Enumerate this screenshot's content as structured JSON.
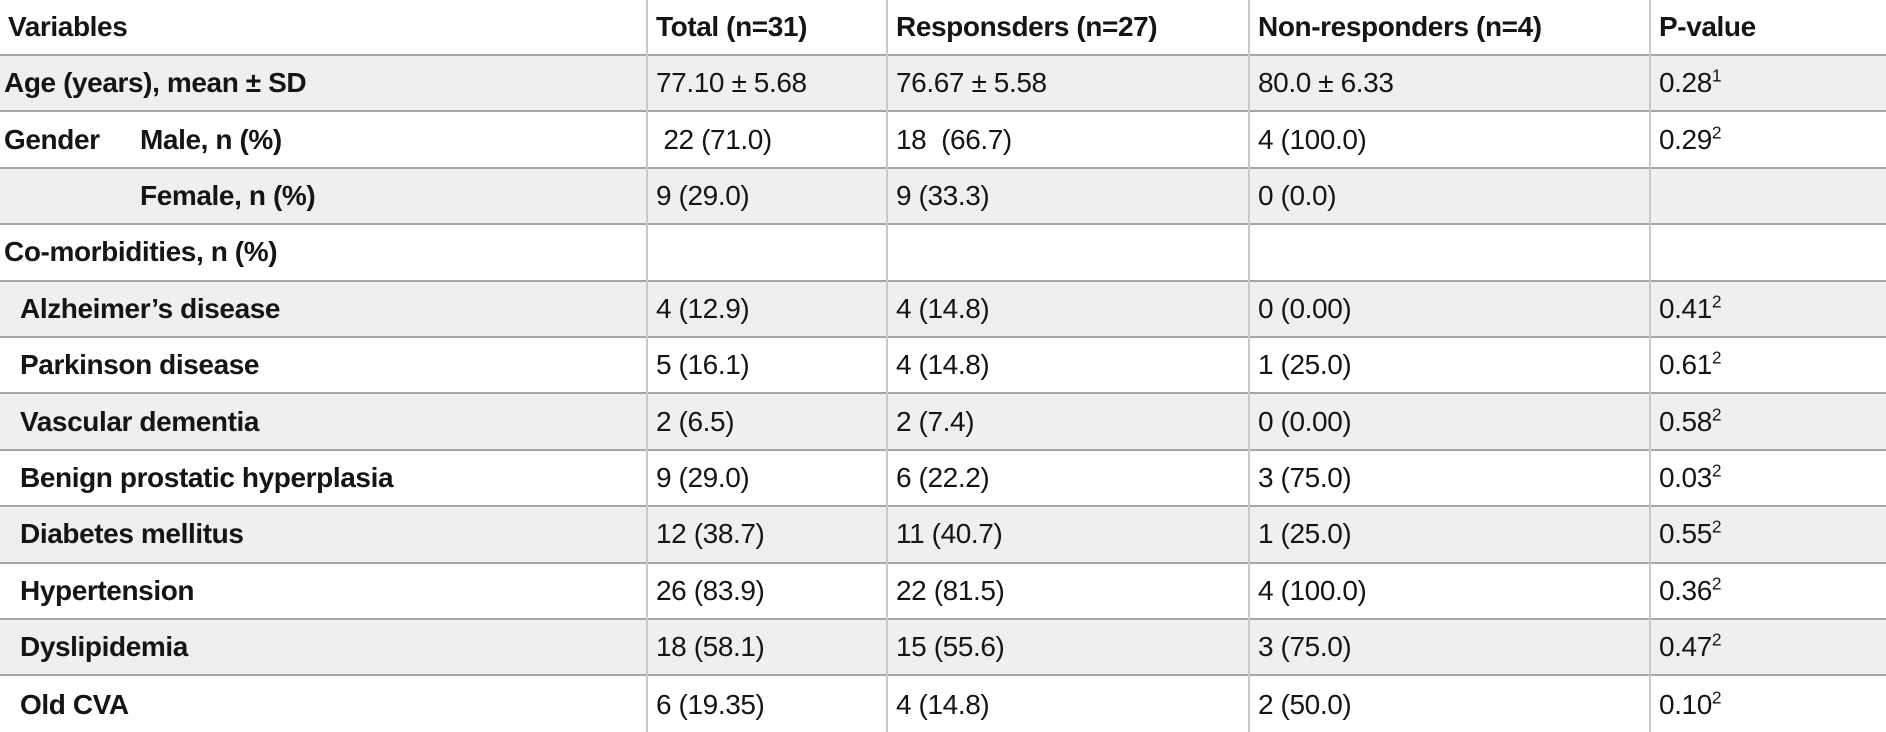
{
  "table": {
    "columns": [
      "Variables",
      "Total (n=31)",
      "Responsders (n=27)",
      "Non-responders (n=4)",
      "P-value"
    ],
    "footnote_colors": {
      "text": "#151515",
      "shaded_row": "#efefef",
      "h_border": "#a6a6a6",
      "v_border": "#c9c9c9"
    },
    "rows": [
      {
        "variable": "Age (years), mean ± SD",
        "indent": "flush",
        "shaded": true,
        "values": [
          "77.10 ± 5.68",
          "76.67 ± 5.58",
          "80.0 ± 6.33"
        ],
        "p": "0.28",
        "p_sup": "1"
      },
      {
        "variable_group": "Gender",
        "variable": "Male, n (%)",
        "indent": "gender-main",
        "shaded": false,
        "values": [
          " 22 (71.0)",
          "18  (66.7)",
          "4 (100.0)"
        ],
        "p": "0.29",
        "p_sup": "2"
      },
      {
        "variable": "Female, n (%)",
        "indent": "gender-sub",
        "shaded": true,
        "values": [
          "9 (29.0)",
          "9 (33.3)",
          "0 (0.0)"
        ],
        "p": "",
        "p_sup": ""
      },
      {
        "variable": "Co-morbidities, n (%)",
        "indent": "flush",
        "shaded": false,
        "values": [
          "",
          "",
          ""
        ],
        "p": "",
        "p_sup": ""
      },
      {
        "variable": "Alzheimer’s disease",
        "indent": "sub",
        "shaded": true,
        "values": [
          "4 (12.9)",
          "4 (14.8)",
          "0 (0.00)"
        ],
        "p": "0.41",
        "p_sup": "2"
      },
      {
        "variable": "Parkinson disease",
        "indent": "sub",
        "shaded": false,
        "values": [
          "5 (16.1)",
          "4 (14.8)",
          "1 (25.0)"
        ],
        "p": "0.61",
        "p_sup": "2"
      },
      {
        "variable": "Vascular dementia",
        "indent": "sub",
        "shaded": true,
        "values": [
          "2 (6.5)",
          "2 (7.4)",
          "0 (0.00)"
        ],
        "p": "0.58",
        "p_sup": "2"
      },
      {
        "variable": "Benign prostatic hyperplasia",
        "indent": "sub",
        "shaded": false,
        "values": [
          "9 (29.0)",
          "6 (22.2)",
          "3 (75.0)"
        ],
        "p": "0.03",
        "p_sup": "2"
      },
      {
        "variable": "Diabetes mellitus",
        "indent": "sub",
        "shaded": true,
        "values": [
          "12 (38.7)",
          "11 (40.7)",
          "1 (25.0)"
        ],
        "p": "0.55",
        "p_sup": "2"
      },
      {
        "variable": "Hypertension",
        "indent": "sub",
        "shaded": false,
        "values": [
          "26 (83.9)",
          "22 (81.5)",
          "4 (100.0)"
        ],
        "p": "0.36",
        "p_sup": "2"
      },
      {
        "variable": "Dyslipidemia",
        "indent": "sub",
        "shaded": true,
        "values": [
          "18 (58.1)",
          "15 (55.6)",
          "3 (75.0)"
        ],
        "p": "0.47",
        "p_sup": "2"
      },
      {
        "variable": "Old CVA",
        "indent": "sub",
        "shaded": false,
        "values": [
          "6 (19.35)",
          "4 (14.8)",
          "2 (50.0)"
        ],
        "p": "0.10",
        "p_sup": "2"
      }
    ]
  }
}
